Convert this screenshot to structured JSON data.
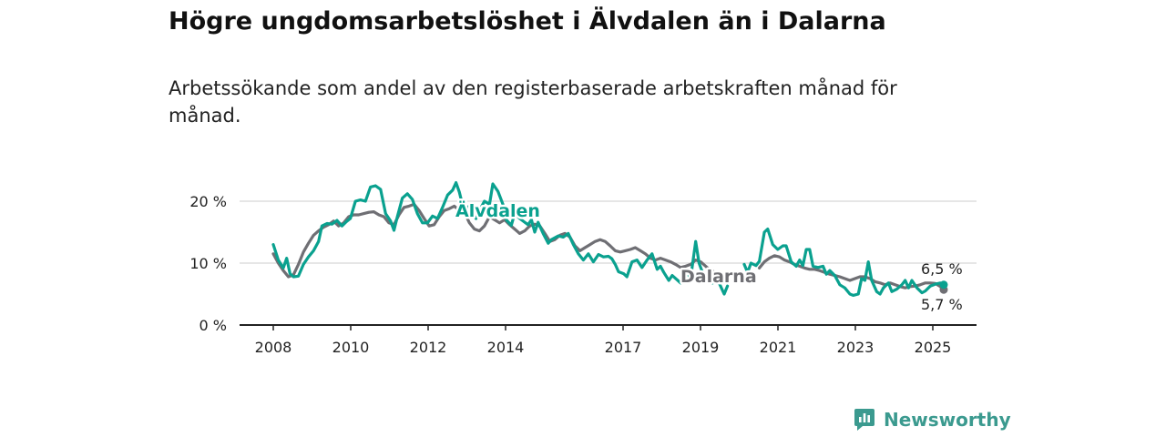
{
  "brand": {
    "name": "Newsworthy",
    "color": "#3b9a8f"
  },
  "colors": {
    "alvdalen": "#0aa18f",
    "dalarna": "#6f6f74",
    "grid": "#d6d6d6"
  },
  "chart_data": {
    "type": "line",
    "title": "Högre ungdomsarbetslöshet i Älvdalen än i Dalarna",
    "subtitle": "Arbetssökande som andel av den registerbaserade arbetskraften månad för månad.",
    "xlabel": "",
    "ylabel": "",
    "x_ticks": [
      "2008",
      "2010",
      "2012",
      "2014",
      "2017",
      "2019",
      "2021",
      "2023",
      "2025"
    ],
    "y_ticks": [
      "0 %",
      "10 %",
      "20 %"
    ],
    "ylim": [
      0,
      25
    ],
    "grid": true,
    "end_labels": [
      "6,5 %",
      "5,7 %"
    ],
    "series": [
      {
        "name": "Älvdalen",
        "color": "#0aa18f",
        "points": [
          [
            2008.0,
            13.0
          ],
          [
            2008.15,
            10.5
          ],
          [
            2008.3,
            9.2
          ],
          [
            2008.4,
            10.8
          ],
          [
            2008.5,
            8.3
          ],
          [
            2008.6,
            7.8
          ],
          [
            2008.75,
            7.9
          ],
          [
            2008.9,
            9.8
          ],
          [
            2009.05,
            11.0
          ],
          [
            2009.2,
            12.0
          ],
          [
            2009.35,
            13.5
          ],
          [
            2009.45,
            16.0
          ],
          [
            2009.6,
            16.4
          ],
          [
            2009.75,
            16.3
          ],
          [
            2009.9,
            16.9
          ],
          [
            2010.05,
            16.0
          ],
          [
            2010.2,
            16.8
          ],
          [
            2010.3,
            17.2
          ],
          [
            2010.45,
            20.0
          ],
          [
            2010.6,
            20.2
          ],
          [
            2010.75,
            20.0
          ],
          [
            2010.9,
            22.3
          ],
          [
            2011.05,
            22.5
          ],
          [
            2011.2,
            21.9
          ],
          [
            2011.35,
            18.0
          ],
          [
            2011.5,
            16.8
          ],
          [
            2011.6,
            15.3
          ],
          [
            2011.7,
            17.5
          ],
          [
            2011.85,
            20.5
          ],
          [
            2012.0,
            21.2
          ],
          [
            2012.15,
            20.3
          ],
          [
            2012.3,
            18.0
          ],
          [
            2012.45,
            16.5
          ],
          [
            2012.6,
            16.5
          ],
          [
            2012.75,
            17.6
          ],
          [
            2012.9,
            17.2
          ],
          [
            2013.05,
            19.0
          ],
          [
            2013.2,
            21.0
          ],
          [
            2013.35,
            21.8
          ],
          [
            2013.45,
            23.0
          ],
          [
            2013.55,
            21.5
          ],
          [
            2013.7,
            18.2
          ],
          [
            2013.85,
            19.3
          ],
          [
            2013.95,
            17.8
          ],
          [
            2014.05,
            17.2
          ],
          [
            2014.15,
            18.5
          ],
          [
            2014.3,
            20.0
          ],
          [
            2014.45,
            19.5
          ],
          [
            2014.55,
            22.8
          ],
          [
            2014.7,
            21.6
          ],
          [
            2014.85,
            19.5
          ],
          [
            2014.95,
            17.0
          ],
          [
            2015.1,
            16.1
          ],
          [
            2015.2,
            18.0
          ],
          [
            2015.35,
            17.2
          ],
          [
            2015.5,
            16.6
          ],
          [
            2015.6,
            16.2
          ],
          [
            2015.7,
            17.0
          ],
          [
            2015.8,
            15.0
          ],
          [
            2015.9,
            16.6
          ],
          [
            2016.05,
            14.8
          ],
          [
            2016.2,
            13.2
          ],
          [
            2016.3,
            13.8
          ],
          [
            2016.5,
            14.4
          ],
          [
            2016.65,
            14.2
          ],
          [
            2016.8,
            14.8
          ],
          [
            2016.95,
            13.0
          ],
          [
            2017.1,
            11.5
          ],
          [
            2017.25,
            10.5
          ],
          [
            2017.4,
            11.5
          ],
          [
            2017.55,
            10.2
          ],
          [
            2017.7,
            11.4
          ],
          [
            2017.85,
            11.0
          ],
          [
            2018.0,
            11.1
          ],
          [
            2018.1,
            10.7
          ],
          [
            2018.2,
            9.8
          ],
          [
            2018.3,
            8.6
          ],
          [
            2018.45,
            8.3
          ],
          [
            2018.55,
            7.8
          ],
          [
            2018.7,
            10.2
          ],
          [
            2018.85,
            10.5
          ],
          [
            2019.0,
            9.3
          ],
          [
            2019.15,
            10.5
          ],
          [
            2019.3,
            11.5
          ],
          [
            2019.45,
            9.0
          ],
          [
            2019.55,
            9.5
          ],
          [
            2019.65,
            8.5
          ],
          [
            2019.8,
            7.2
          ],
          [
            2019.9,
            8.0
          ],
          [
            2020.05,
            7.3
          ],
          [
            2020.15,
            6.8
          ],
          [
            2020.3,
            8.6
          ],
          [
            2020.45,
            7.6
          ],
          [
            2020.6,
            13.5
          ],
          [
            2020.7,
            10.0
          ],
          [
            2020.85,
            7.8
          ],
          [
            2021.0,
            7.8
          ],
          [
            2021.1,
            6.8
          ],
          [
            2021.2,
            7.2
          ],
          [
            2021.3,
            6.8
          ],
          [
            2021.45,
            5.0
          ],
          [
            2021.55,
            6.3
          ]
        ],
        "points_b": [
          [
            2022.05,
            9.8
          ],
          [
            2022.15,
            8.5
          ],
          [
            2022.25,
            10.0
          ],
          [
            2022.4,
            9.6
          ],
          [
            2022.5,
            10.3
          ],
          [
            2022.65,
            15.0
          ],
          [
            2022.75,
            15.5
          ],
          [
            2022.9,
            13.0
          ],
          [
            2023.05,
            12.2
          ],
          [
            2023.2,
            12.8
          ],
          [
            2023.3,
            12.8
          ],
          [
            2023.45,
            10.2
          ],
          [
            2023.6,
            9.5
          ],
          [
            2023.7,
            10.5
          ],
          [
            2023.8,
            9.6
          ],
          [
            2023.9,
            12.2
          ],
          [
            2024.0,
            12.2
          ],
          [
            2024.1,
            9.5
          ],
          [
            2024.25,
            9.3
          ],
          [
            2024.4,
            9.5
          ],
          [
            2024.5,
            8.2
          ],
          [
            2024.6,
            8.8
          ],
          [
            2024.75,
            8.0
          ],
          [
            2024.9,
            6.5
          ],
          [
            2025.05,
            6.0
          ],
          [
            2025.2,
            5.0
          ],
          [
            2025.3,
            4.8
          ],
          [
            2025.45,
            5.0
          ],
          [
            2025.55,
            7.5
          ],
          [
            2025.65,
            7.2
          ],
          [
            2025.75,
            10.2
          ],
          [
            2025.85,
            7.2
          ],
          [
            2026.0,
            5.4
          ],
          [
            2026.1,
            5.0
          ],
          [
            2026.2,
            6.0
          ],
          [
            2026.35,
            6.8
          ],
          [
            2026.45,
            5.4
          ],
          [
            2026.6,
            5.8
          ],
          [
            2026.75,
            6.5
          ],
          [
            2026.85,
            7.2
          ],
          [
            2026.95,
            6.0
          ],
          [
            2027.05,
            7.2
          ],
          [
            2027.2,
            6.0
          ],
          [
            2027.35,
            5.2
          ],
          [
            2027.45,
            5.5
          ],
          [
            2027.6,
            6.3
          ],
          [
            2027.75,
            6.6
          ],
          [
            2027.9,
            6.8
          ],
          [
            2028.0,
            6.5
          ]
        ]
      },
      {
        "name": "Dalarna",
        "color": "#6f6f74",
        "points": [
          [
            2008.0,
            11.5
          ],
          [
            2008.15,
            10.0
          ],
          [
            2008.3,
            8.8
          ],
          [
            2008.45,
            7.8
          ],
          [
            2008.6,
            8.1
          ],
          [
            2008.75,
            9.8
          ],
          [
            2008.9,
            11.8
          ],
          [
            2009.05,
            13.2
          ],
          [
            2009.2,
            14.5
          ],
          [
            2009.35,
            15.2
          ],
          [
            2009.5,
            15.8
          ],
          [
            2009.65,
            16.2
          ],
          [
            2009.8,
            16.8
          ],
          [
            2009.95,
            16.0
          ],
          [
            2010.1,
            16.5
          ],
          [
            2010.25,
            17.5
          ],
          [
            2010.4,
            17.8
          ],
          [
            2010.55,
            17.8
          ],
          [
            2010.7,
            18.0
          ],
          [
            2010.85,
            18.2
          ],
          [
            2011.0,
            18.3
          ],
          [
            2011.15,
            17.8
          ],
          [
            2011.3,
            17.5
          ],
          [
            2011.45,
            16.5
          ],
          [
            2011.6,
            16.2
          ],
          [
            2011.75,
            17.8
          ],
          [
            2011.9,
            19.0
          ],
          [
            2012.05,
            19.2
          ],
          [
            2012.2,
            19.5
          ],
          [
            2012.35,
            18.5
          ],
          [
            2012.5,
            17.2
          ],
          [
            2012.65,
            16.0
          ],
          [
            2012.8,
            16.2
          ],
          [
            2012.95,
            17.5
          ],
          [
            2013.1,
            18.5
          ],
          [
            2013.25,
            18.8
          ],
          [
            2013.4,
            19.2
          ],
          [
            2013.55,
            18.5
          ],
          [
            2013.7,
            18.2
          ],
          [
            2013.85,
            16.5
          ],
          [
            2014.0,
            15.5
          ],
          [
            2014.15,
            15.2
          ],
          [
            2014.3,
            16.0
          ],
          [
            2014.45,
            17.5
          ],
          [
            2014.6,
            17.0
          ],
          [
            2014.75,
            16.5
          ],
          [
            2014.9,
            17.0
          ],
          [
            2015.05,
            16.2
          ],
          [
            2015.2,
            15.5
          ],
          [
            2015.35,
            14.8
          ],
          [
            2015.5,
            15.2
          ],
          [
            2015.65,
            16.0
          ],
          [
            2015.8,
            16.3
          ],
          [
            2015.95,
            16.0
          ],
          [
            2016.1,
            14.8
          ],
          [
            2016.25,
            13.5
          ],
          [
            2016.4,
            13.8
          ],
          [
            2016.55,
            14.5
          ],
          [
            2016.7,
            14.8
          ],
          [
            2016.85,
            14.2
          ],
          [
            2017.0,
            12.8
          ],
          [
            2017.15,
            12.0
          ],
          [
            2017.3,
            12.5
          ],
          [
            2017.45,
            13.0
          ],
          [
            2017.6,
            13.5
          ],
          [
            2017.75,
            13.8
          ],
          [
            2017.9,
            13.5
          ],
          [
            2018.05,
            12.8
          ],
          [
            2018.2,
            12.0
          ],
          [
            2018.35,
            11.8
          ],
          [
            2018.5,
            12.0
          ],
          [
            2018.65,
            12.2
          ],
          [
            2018.8,
            12.5
          ],
          [
            2018.95,
            12.0
          ],
          [
            2019.1,
            11.5
          ],
          [
            2019.25,
            10.8
          ],
          [
            2019.4,
            10.5
          ],
          [
            2019.55,
            10.8
          ],
          [
            2019.7,
            10.5
          ],
          [
            2019.85,
            10.2
          ],
          [
            2020.0,
            9.8
          ],
          [
            2020.15,
            9.3
          ],
          [
            2020.3,
            9.5
          ],
          [
            2020.45,
            9.8
          ],
          [
            2020.6,
            10.5
          ],
          [
            2020.75,
            10.2
          ],
          [
            2020.9,
            9.5
          ],
          [
            2021.05,
            8.8
          ],
          [
            2021.2,
            8.5
          ],
          [
            2021.35,
            8.3
          ]
        ],
        "points_b": [
          [
            2022.5,
            9.2
          ],
          [
            2022.65,
            10.2
          ],
          [
            2022.8,
            10.8
          ],
          [
            2022.95,
            11.2
          ],
          [
            2023.1,
            11.0
          ],
          [
            2023.25,
            10.5
          ],
          [
            2023.4,
            10.2
          ],
          [
            2023.55,
            9.8
          ],
          [
            2023.7,
            9.5
          ],
          [
            2023.85,
            9.2
          ],
          [
            2024.0,
            9.0
          ],
          [
            2024.15,
            9.0
          ],
          [
            2024.3,
            8.8
          ],
          [
            2024.45,
            8.5
          ],
          [
            2024.6,
            8.2
          ],
          [
            2024.75,
            8.0
          ],
          [
            2024.9,
            7.8
          ],
          [
            2025.05,
            7.5
          ],
          [
            2025.2,
            7.2
          ],
          [
            2025.35,
            7.5
          ],
          [
            2025.5,
            7.8
          ],
          [
            2025.65,
            7.8
          ],
          [
            2025.8,
            7.5
          ],
          [
            2025.95,
            7.0
          ],
          [
            2026.1,
            6.8
          ],
          [
            2026.25,
            6.5
          ],
          [
            2026.4,
            6.8
          ],
          [
            2026.55,
            6.5
          ],
          [
            2026.7,
            6.2
          ],
          [
            2026.85,
            6.0
          ],
          [
            2027.0,
            6.2
          ],
          [
            2027.15,
            6.3
          ],
          [
            2027.3,
            6.5
          ],
          [
            2027.45,
            6.8
          ],
          [
            2027.6,
            6.8
          ],
          [
            2027.75,
            6.7
          ],
          [
            2027.9,
            6.2
          ],
          [
            2028.0,
            5.7
          ]
        ]
      }
    ]
  }
}
